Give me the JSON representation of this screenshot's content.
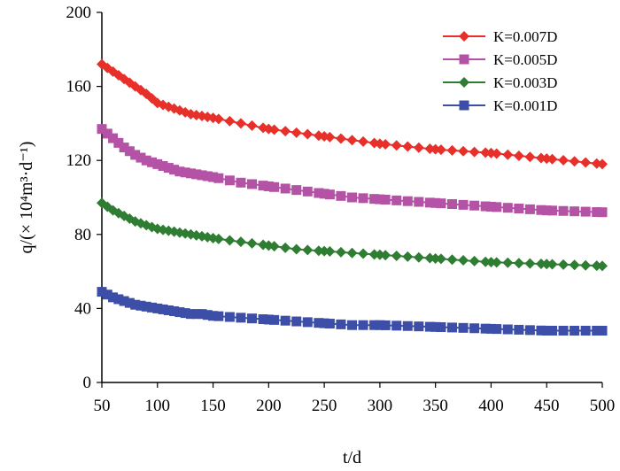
{
  "chart_data": {
    "type": "line",
    "title": "",
    "xlabel": "t/d",
    "ylabel": "q/(× 10⁴m³·d⁻¹)",
    "xlim": [
      50,
      500
    ],
    "ylim": [
      0,
      200
    ],
    "xticks": [
      50,
      100,
      150,
      200,
      250,
      300,
      350,
      400,
      450,
      500
    ],
    "yticks": [
      0,
      40,
      80,
      120,
      160,
      200
    ],
    "grid": false,
    "legend_position": "top-right",
    "series": [
      {
        "name": "K=0.007D",
        "color": "#e8302a",
        "marker": "diamond",
        "points": [
          [
            50,
            172
          ],
          [
            60,
            168
          ],
          [
            70,
            164
          ],
          [
            80,
            160
          ],
          [
            90,
            156
          ],
          [
            100,
            151
          ],
          [
            110,
            149
          ],
          [
            120,
            147
          ],
          [
            130,
            145
          ],
          [
            140,
            144
          ],
          [
            150,
            143
          ],
          [
            175,
            140
          ],
          [
            200,
            137
          ],
          [
            225,
            135
          ],
          [
            250,
            133
          ],
          [
            275,
            131
          ],
          [
            300,
            129
          ],
          [
            350,
            126
          ],
          [
            400,
            124
          ],
          [
            450,
            121
          ],
          [
            500,
            118
          ]
        ]
      },
      {
        "name": "K=0.005D",
        "color": "#b452a6",
        "marker": "square",
        "points": [
          [
            50,
            137
          ],
          [
            60,
            132
          ],
          [
            70,
            127
          ],
          [
            80,
            123
          ],
          [
            90,
            120
          ],
          [
            100,
            118
          ],
          [
            110,
            116
          ],
          [
            120,
            114
          ],
          [
            130,
            113
          ],
          [
            140,
            112
          ],
          [
            150,
            111
          ],
          [
            175,
            108
          ],
          [
            200,
            106
          ],
          [
            225,
            104
          ],
          [
            250,
            102
          ],
          [
            275,
            100
          ],
          [
            300,
            99
          ],
          [
            350,
            97
          ],
          [
            400,
            95
          ],
          [
            450,
            93
          ],
          [
            500,
            92
          ]
        ]
      },
      {
        "name": "K=0.003D",
        "color": "#2f7d32",
        "marker": "diamond",
        "points": [
          [
            50,
            97
          ],
          [
            60,
            93
          ],
          [
            70,
            90
          ],
          [
            80,
            87
          ],
          [
            90,
            85
          ],
          [
            100,
            83
          ],
          [
            110,
            82
          ],
          [
            120,
            81
          ],
          [
            130,
            80
          ],
          [
            140,
            79
          ],
          [
            150,
            78
          ],
          [
            175,
            76
          ],
          [
            200,
            74
          ],
          [
            225,
            72
          ],
          [
            250,
            71
          ],
          [
            275,
            70
          ],
          [
            300,
            69
          ],
          [
            350,
            67
          ],
          [
            400,
            65
          ],
          [
            450,
            64
          ],
          [
            500,
            63
          ]
        ]
      },
      {
        "name": "K=0.001D",
        "color": "#3c4ea8",
        "marker": "square",
        "points": [
          [
            50,
            49
          ],
          [
            60,
            46
          ],
          [
            70,
            44
          ],
          [
            80,
            42
          ],
          [
            90,
            41
          ],
          [
            100,
            40
          ],
          [
            110,
            39
          ],
          [
            120,
            38
          ],
          [
            130,
            37
          ],
          [
            140,
            37
          ],
          [
            150,
            36
          ],
          [
            175,
            35
          ],
          [
            200,
            34
          ],
          [
            225,
            33
          ],
          [
            250,
            32
          ],
          [
            275,
            31
          ],
          [
            300,
            31
          ],
          [
            350,
            30
          ],
          [
            400,
            29
          ],
          [
            450,
            28
          ],
          [
            500,
            28
          ]
        ]
      }
    ]
  }
}
